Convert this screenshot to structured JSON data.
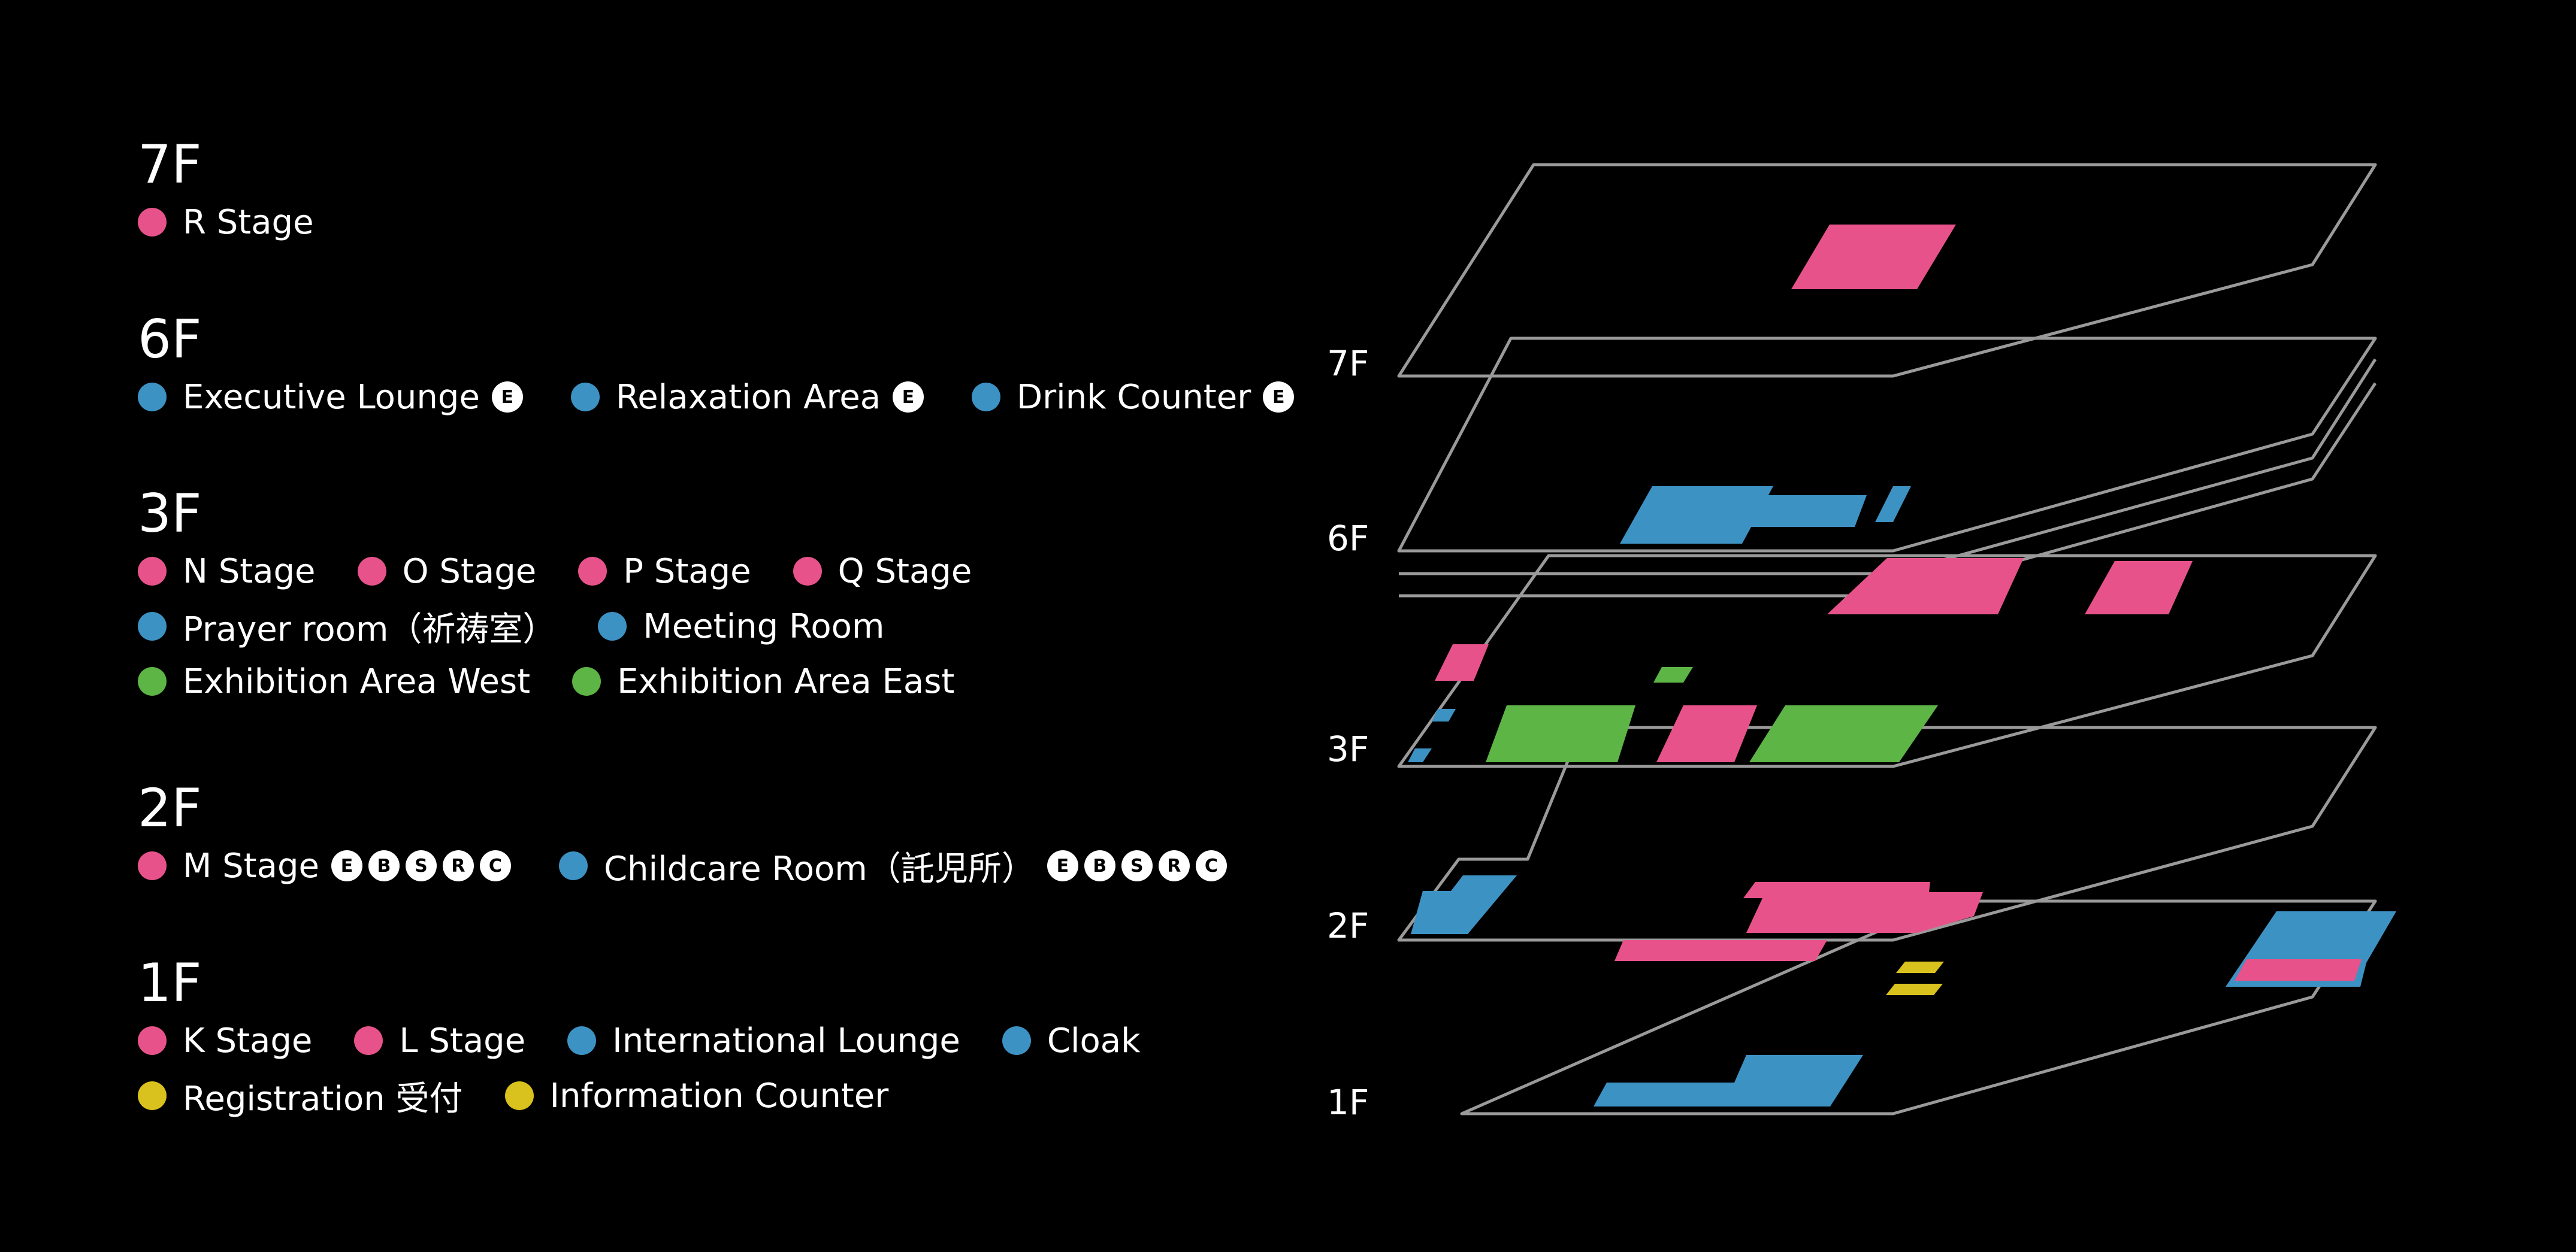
{
  "colors": {
    "stage": "#E8528A",
    "facility": "#3D92C4",
    "exhibition": "#5DB546",
    "counter": "#D9C21E",
    "outline": "#9A9A9A"
  },
  "floors": [
    {
      "id": "7F",
      "label": "7F",
      "rows": [
        [
          {
            "label": "R Stage",
            "type": "stage",
            "badges": []
          }
        ]
      ]
    },
    {
      "id": "6F",
      "label": "6F",
      "rows": [
        [
          {
            "label": "Executive Lounge",
            "type": "facility",
            "badges": [
              "E"
            ]
          },
          {
            "label": "Relaxation Area",
            "type": "facility",
            "badges": [
              "E"
            ]
          },
          {
            "label": "Drink Counter",
            "type": "facility",
            "badges": [
              "E"
            ]
          }
        ]
      ]
    },
    {
      "id": "3F",
      "label": "3F",
      "rows": [
        [
          {
            "label": "N Stage",
            "type": "stage",
            "badges": []
          },
          {
            "label": "O Stage",
            "type": "stage",
            "badges": []
          },
          {
            "label": "P Stage",
            "type": "stage",
            "badges": []
          },
          {
            "label": "Q Stage",
            "type": "stage",
            "badges": []
          }
        ],
        [
          {
            "label": "Prayer room（祈祷室）",
            "type": "facility",
            "badges": []
          },
          {
            "label": "Meeting Room",
            "type": "facility",
            "badges": []
          }
        ],
        [
          {
            "label": "Exhibition Area West",
            "type": "exhibition",
            "badges": []
          },
          {
            "label": "Exhibition Area East",
            "type": "exhibition",
            "badges": []
          }
        ]
      ]
    },
    {
      "id": "2F",
      "label": "2F",
      "rows": [
        [
          {
            "label": "M Stage",
            "type": "stage",
            "badges": [
              "E",
              "B",
              "S",
              "R",
              "C"
            ]
          },
          {
            "label": "Childcare Room（託児所）",
            "type": "facility",
            "badges": [
              "E",
              "B",
              "S",
              "R",
              "C"
            ]
          }
        ]
      ]
    },
    {
      "id": "1F",
      "label": "1F",
      "rows": [
        [
          {
            "label": "K Stage",
            "type": "stage",
            "badges": []
          },
          {
            "label": "L Stage",
            "type": "stage",
            "badges": []
          },
          {
            "label": "International Lounge",
            "type": "facility",
            "badges": []
          },
          {
            "label": "Cloak",
            "type": "facility",
            "badges": []
          }
        ],
        [
          {
            "label": "Registration 受付",
            "type": "counter",
            "badges": []
          },
          {
            "label": "Information Counter",
            "type": "counter",
            "badges": []
          }
        ]
      ]
    }
  ],
  "map_labels": {
    "f7": "7F",
    "f6": "6F",
    "f3": "3F",
    "f2": "2F",
    "f1": "1F"
  }
}
